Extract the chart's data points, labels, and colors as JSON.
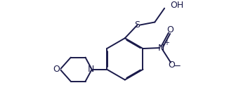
{
  "line_color": "#1a1a4a",
  "bg_color": "#ffffff",
  "font_size": 8.5,
  "line_width": 1.4,
  "dbo": 0.013,
  "figsize": [
    3.26,
    1.55
  ],
  "dpi": 100,
  "xlim": [
    0,
    3.26
  ],
  "ylim": [
    0,
    1.55
  ]
}
